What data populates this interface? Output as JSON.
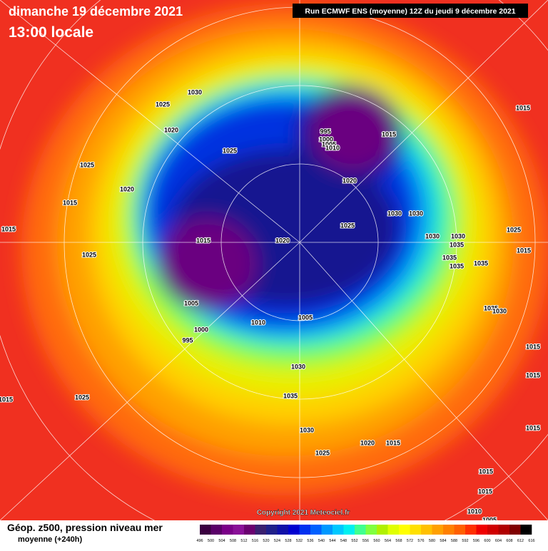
{
  "header": {
    "date": "dimanche 19 décembre 2021",
    "time": "13:00 locale",
    "run": "Run ECMWF ENS (moyenne) 12Z du jeudi 9 décembre 2021"
  },
  "isobar_labels": [
    "1030",
    "1025",
    "1020",
    "1025",
    "1025",
    "1020",
    "1015",
    "1015",
    "1025",
    "995",
    "1000",
    "1005",
    "1010",
    "1015",
    "1020",
    "1030",
    "1030",
    "1025",
    "1020",
    "1015",
    "1030",
    "1030",
    "1035",
    "1035",
    "1035",
    "1035",
    "1025",
    "1015",
    "1015",
    "1005",
    "1000",
    "995",
    "1010",
    "1005",
    "1035",
    "1030",
    "1030",
    "1035",
    "1030",
    "1025",
    "1020",
    "1015",
    "1015",
    "1015",
    "1025",
    "1015",
    "1015",
    "1015",
    "1010",
    "1005",
    "1015"
  ],
  "footer": {
    "copyright": "Copyright 2021 Meteociel.fr",
    "title": "Géop. z500, pression niveau mer",
    "subtitle": "moyenne  (+240h)"
  },
  "colorbar": {
    "labels": [
      496,
      500,
      504,
      508,
      512,
      516,
      520,
      524,
      528,
      532,
      536,
      540,
      544,
      548,
      552,
      556,
      560,
      564,
      568,
      572,
      576,
      580,
      584,
      588,
      592,
      596,
      600,
      604,
      608,
      612,
      616
    ],
    "colors": [
      "#3a0040",
      "#5a0068",
      "#7a0088",
      "#8a1098",
      "#6a0070",
      "#3a2070",
      "#20208a",
      "#1010a8",
      "#0000d0",
      "#0030f0",
      "#0060ff",
      "#0098ff",
      "#00c8ff",
      "#00f0f0",
      "#40ff90",
      "#80ff40",
      "#b0f000",
      "#e0ff00",
      "#ffff00",
      "#ffe000",
      "#ffc000",
      "#ffa000",
      "#ff8000",
      "#ff6000",
      "#ff3000",
      "#f00000",
      "#d00000",
      "#b00000",
      "#800000",
      "#000000"
    ]
  }
}
